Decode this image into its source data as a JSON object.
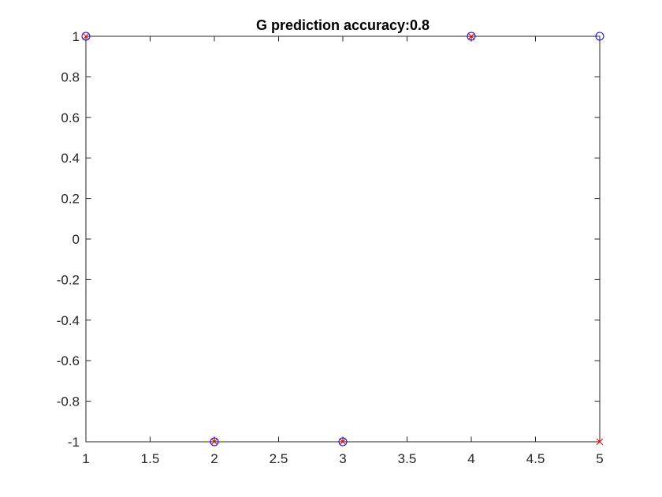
{
  "chart_data": {
    "type": "scatter",
    "title": "G prediction accuracy:0.8",
    "xlabel": "",
    "ylabel": "",
    "xlim": [
      1,
      5
    ],
    "ylim": [
      -1,
      1
    ],
    "grid": false,
    "legend": "none",
    "x_ticks": [
      1,
      1.5,
      2,
      2.5,
      3,
      3.5,
      4,
      4.5,
      5
    ],
    "x_tick_labels": [
      "1",
      "1.5",
      "2",
      "2.5",
      "3",
      "3.5",
      "4",
      "4.5",
      "5"
    ],
    "y_ticks": [
      1,
      0.8,
      0.6,
      0.4,
      0.2,
      0,
      -0.2,
      -0.4,
      -0.6,
      -0.8,
      -1
    ],
    "y_tick_labels": [
      "1",
      "0.8",
      "0.6",
      "0.4",
      "0.2",
      "0",
      "-0.2",
      "-0.4",
      "-0.6",
      "-0.8",
      "-1"
    ],
    "series": [
      {
        "marker": "o",
        "color": "#0000ff",
        "x": [
          1,
          2,
          3,
          4,
          5
        ],
        "y": [
          1,
          -1,
          -1,
          1,
          1
        ]
      },
      {
        "marker": "x",
        "color": "#ff0000",
        "x": [
          1,
          2,
          3,
          4,
          5
        ],
        "y": [
          1,
          -1,
          -1,
          1,
          -1
        ]
      }
    ]
  }
}
